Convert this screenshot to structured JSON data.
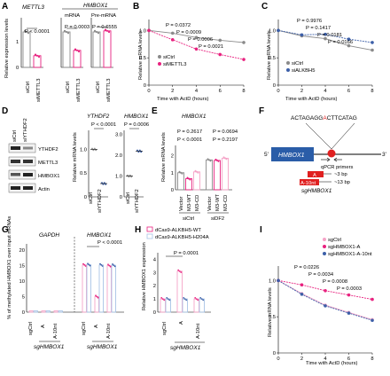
{
  "panel_letters": [
    "A",
    "B",
    "C",
    "D",
    "E",
    "F",
    "G",
    "H",
    "I"
  ],
  "colors": {
    "ctrl": "#8a8a8a",
    "knock": "#e8217f",
    "knock_light": "#f5a3c7",
    "blue": "#3c5fa8",
    "light_blue": "#a8c4e6",
    "hmbox_box": "#2a5da8",
    "red_box": "#e02020"
  },
  "panelA": {
    "ylabel": "Relative expression levels",
    "title_gene": "METTL3",
    "title_group": "HMBOX1",
    "subtitles": [
      "mRNA",
      "Pre-mRNA"
    ],
    "pvalues": [
      "P < 0.0001",
      "P = 0.0003",
      "P = 0.6555"
    ],
    "xticks": [
      "siCtrl",
      "siMETTL3"
    ],
    "yticks": [
      "0",
      "1"
    ]
  },
  "panelB": {
    "ylabel": "Relative mRNA levels",
    "xlabel": "Time with ActD (hours)",
    "xticks": [
      "0",
      "2",
      "4",
      "6",
      "8"
    ],
    "yticks": [
      "0",
      "0.5",
      "1.0"
    ],
    "pvalues": [
      "P = 0.0372",
      "P = 0.0009",
      "P = 0.0006",
      "P = 0.0021"
    ],
    "legend": [
      "siCtrl",
      "siMETTL3"
    ]
  },
  "panelC": {
    "ylabel": "Relative mRNA levels",
    "xlabel": "Time with ActD (hours)",
    "xticks": [
      "0",
      "2",
      "4",
      "6",
      "8"
    ],
    "yticks": [
      "0",
      "0.5",
      "1.0"
    ],
    "pvalues": [
      "P = 0.9976",
      "P = 0.1417",
      "P = 0.0181",
      "P = 0.0166"
    ],
    "legend": [
      "siCtrl",
      "siALKBH5"
    ]
  },
  "panelD": {
    "lanes": [
      "siCtrl",
      "siYTHDF2"
    ],
    "blots": [
      "YTHDF2",
      "METTL3",
      "HMBOX1",
      "Actin"
    ],
    "chart_titles": [
      "YTHDF2",
      "HMBOX1"
    ],
    "ylabel": "Relative mRNA levels",
    "pvalues": [
      "P < 0.0001",
      "P = 0.0006"
    ],
    "xticks": [
      "siCtrl",
      "siYTHDF2"
    ],
    "yticks_left": [
      "0",
      "0.5",
      "1.0"
    ],
    "yticks_right": [
      "0",
      "1.0",
      "2.0",
      "3.0"
    ]
  },
  "panelE": {
    "title": "HMBOX1",
    "ylabel": "Relative mRNA levels",
    "yticks": [
      "0",
      "1",
      "2"
    ],
    "pvalues": [
      "P = 0.2617",
      "P = 0.0694",
      "P < 0.0001",
      "P = 0.2197"
    ],
    "xticks": [
      "Vector",
      "M3-WT",
      "M3-CD",
      "Vector",
      "M3-WT",
      "M3-CD"
    ],
    "groups": [
      "siCtrl",
      "siDF2"
    ]
  },
  "panelF": {
    "sequence_left": "ACTAGAGG",
    "sequence_mid": "A",
    "sequence_right": "CTTCATAG",
    "gene": "HMBOX1",
    "five": "5'",
    "three": "3'",
    "primers": "qPCR primers",
    "guide_a": "A",
    "guide_a10": "A-10nt",
    "bp3": "~3 bp",
    "bp13": "~13 bp",
    "sg": "sgHMBOX1"
  },
  "panelG": {
    "ylabel": "% of methylated HMBOX1 over input mRNAs",
    "genes": [
      "GAPDH",
      "HMBOX1"
    ],
    "pvalue": "P < 0.0001",
    "xticks": [
      "sgCtrl",
      "A",
      "A-10nt",
      "sgCtrl",
      "A",
      "A-10nt"
    ],
    "sg": "sgHMBOX1",
    "yticks": [
      "0",
      "5",
      "10",
      "15",
      "20"
    ]
  },
  "panelH": {
    "legend": [
      "dCas9-ALKBH5-WT",
      "dCas9-ALKBH5-H204A"
    ],
    "ylabel": "Relative HMBOX1 expression",
    "pvalue": "P = 0.0001",
    "xticks": [
      "sgCtrl",
      "A",
      "A-10nt"
    ],
    "sg": "sgHMBOX1",
    "yticks": [
      "0",
      "1",
      "2",
      "3",
      "4"
    ]
  },
  "panelI": {
    "ylabel": "Relative mRNA levels",
    "xlabel": "Time with ActD (hours)",
    "xticks": [
      "0",
      "2",
      "4",
      "6",
      "8"
    ],
    "yticks": [
      "0",
      "0.5",
      "1.0"
    ],
    "legend": [
      "sgCtrl",
      "sgHMBOX1-A",
      "sgHMBOX1-A-10nt"
    ],
    "pvalues": [
      "P = 0.0226",
      "P = 0.0034",
      "P = 0.0008",
      "P = 0.0003"
    ]
  },
  "chart_data": [
    {
      "type": "bar",
      "panel": "A",
      "categories": [
        "siCtrl",
        "siMETTL3"
      ],
      "series": [
        {
          "name": "METTL3",
          "values": [
            1.0,
            0.33
          ]
        },
        {
          "name": "mRNA",
          "values": [
            1.0,
            0.48
          ]
        },
        {
          "name": "Pre-mRNA",
          "values": [
            1.0,
            1.03
          ]
        }
      ],
      "ylim": [
        0,
        1.4
      ]
    },
    {
      "type": "line",
      "panel": "B",
      "x": [
        0,
        2,
        4,
        6,
        8
      ],
      "series": [
        {
          "name": "siCtrl",
          "values": [
            1.0,
            0.95,
            0.87,
            0.82,
            0.78
          ]
        },
        {
          "name": "siMETTL3",
          "values": [
            1.0,
            0.83,
            0.66,
            0.56,
            0.47
          ]
        }
      ],
      "ylim": [
        0,
        1.2
      ],
      "xlim": [
        0,
        8
      ]
    },
    {
      "type": "line",
      "panel": "C",
      "x": [
        0,
        2,
        4,
        6,
        8
      ],
      "series": [
        {
          "name": "siCtrl",
          "values": [
            1.0,
            0.9,
            0.85,
            0.72,
            0.64
          ]
        },
        {
          "name": "siALKBH5",
          "values": [
            1.0,
            0.92,
            0.93,
            0.84,
            0.78
          ]
        }
      ],
      "ylim": [
        0,
        1.2
      ],
      "xlim": [
        0,
        8
      ]
    },
    {
      "type": "scatter",
      "panel": "D",
      "categories": [
        "siCtrl",
        "siYTHDF2"
      ],
      "series": [
        {
          "name": "YTHDF2",
          "values": [
            1.0,
            0.28
          ]
        },
        {
          "name": "HMBOX1",
          "values": [
            1.0,
            2.2
          ]
        }
      ]
    },
    {
      "type": "bar",
      "panel": "E",
      "categories": [
        "Vector",
        "M3-WT",
        "M3-CD",
        "Vector",
        "M3-WT",
        "M3-CD"
      ],
      "values": [
        1.0,
        0.65,
        1.05,
        1.75,
        1.72,
        1.85
      ],
      "ylim": [
        0,
        2.6
      ]
    },
    {
      "type": "bar",
      "panel": "G",
      "categories": [
        "sgCtrl",
        "A",
        "A-10nt",
        "sgCtrl",
        "A",
        "A-10nt"
      ],
      "series": [
        {
          "name": "dCas9-ALKBH5-WT",
          "values": [
            0.4,
            0.4,
            0.4,
            15.2,
            5.0,
            15.0
          ]
        },
        {
          "name": "dCas9-ALKBH5-H204A",
          "values": [
            0.4,
            0.4,
            0.4,
            15.3,
            15.2,
            15.1
          ]
        }
      ],
      "ylim": [
        0,
        22
      ]
    },
    {
      "type": "bar",
      "panel": "H",
      "categories": [
        "sgCtrl",
        "A",
        "A-10nt"
      ],
      "series": [
        {
          "name": "dCas9-ALKBH5-WT",
          "values": [
            1.0,
            3.1,
            1.0
          ]
        },
        {
          "name": "dCas9-ALKBH5-H204A",
          "values": [
            1.0,
            1.0,
            1.0
          ]
        }
      ],
      "ylim": [
        0,
        4.5
      ]
    },
    {
      "type": "line",
      "panel": "I",
      "x": [
        0,
        2,
        4,
        6,
        8
      ],
      "series": [
        {
          "name": "sgCtrl",
          "values": [
            1.0,
            0.82,
            0.66,
            0.56,
            0.46
          ]
        },
        {
          "name": "sgHMBOX1-A",
          "values": [
            1.0,
            0.94,
            0.86,
            0.8,
            0.74
          ]
        },
        {
          "name": "sgHMBOX1-A-10nt",
          "values": [
            1.0,
            0.81,
            0.65,
            0.55,
            0.45
          ]
        }
      ],
      "ylim": [
        0,
        1.2
      ],
      "xlim": [
        0,
        8
      ]
    }
  ]
}
